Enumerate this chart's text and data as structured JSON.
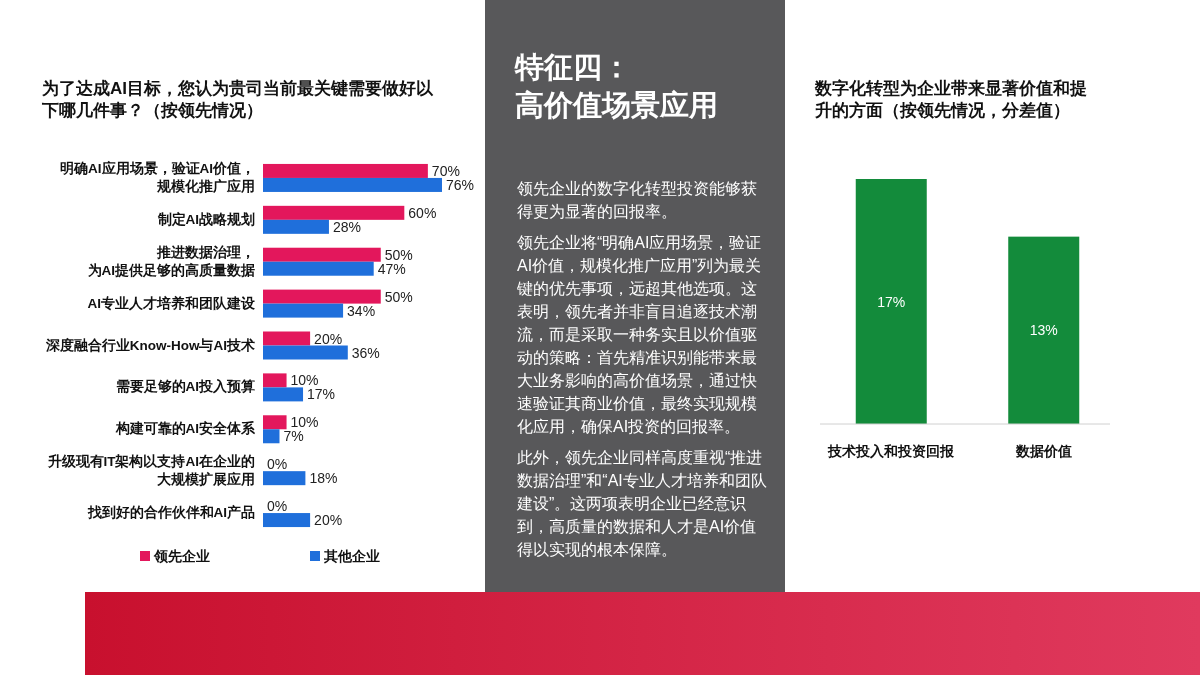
{
  "chart_data": [
    {
      "type": "bar",
      "orientation": "horizontal",
      "title": "为了达成AI目标，您认为贵司当前最关键需要做好以下哪几件事？（按领先情况）",
      "categories": [
        "明确AI应用场景，验证AI价值，规模化推广应用",
        "制定AI战略规划",
        "推进数据治理，为AI提供足够的高质量数据",
        "AI专业人才培养和团队建设",
        "深度融合行业Know-How与AI技术",
        "需要足够的AI投入预算",
        "构建可靠的AI安全体系",
        "升级现有IT架构以支持AI在企业的大规模扩展应用",
        "找到好的合作伙伴和AI产品"
      ],
      "series": [
        {
          "name": "领先企业",
          "color": "#e3175c",
          "values": [
            70,
            60,
            50,
            50,
            20,
            10,
            10,
            0,
            0
          ],
          "value_labels": [
            "70%",
            "60%",
            "50%",
            "50%",
            "20%",
            "10%",
            "10%",
            "0%",
            "0%"
          ]
        },
        {
          "name": "其他企业",
          "color": "#1f6fdb",
          "values": [
            76,
            28,
            47,
            34,
            36,
            17,
            7,
            18,
            20
          ],
          "value_labels": [
            "76%",
            "28%",
            "47%",
            "34%",
            "36%",
            "17%",
            "7%",
            "18%",
            "20%"
          ]
        }
      ],
      "legend": "bottom"
    },
    {
      "type": "other",
      "title": "特征四：高价值场景应用",
      "annotations": [
        "领先企业的数字化转型投资能够获得更为显著的回报率。",
        "领先企业将“明确AI应用场景，验证AI价值，规模化推广应用”列为最关键的优先事项，远超其他选项。这表明，领先者并非盲目追逐技术潮流，而是采取一种务实且以价值驱动的策略：首先精准识别能带来最大业务影响的高价值场景，通过快速验证其商业价值，最终实现规模化应用，确保AI投资的回报率。",
        "此外，领先企业同样高度重视“推进数据治理”和“AI专业人才培养和团队建设”。这两项表明企业已经意识到，高质量的数据和人才是AI价值得以实现的根本保障。"
      ]
    },
    {
      "type": "bar",
      "title": "数字化转型为企业带来显著价值和提升的方面（按领先情况，分差值）",
      "categories": [
        "技术投入和投资回报",
        "数据价值"
      ],
      "values": [
        17,
        13
      ],
      "color": "#138b3b",
      "value_labels": [
        "17%",
        "13%"
      ]
    }
  ]
}
